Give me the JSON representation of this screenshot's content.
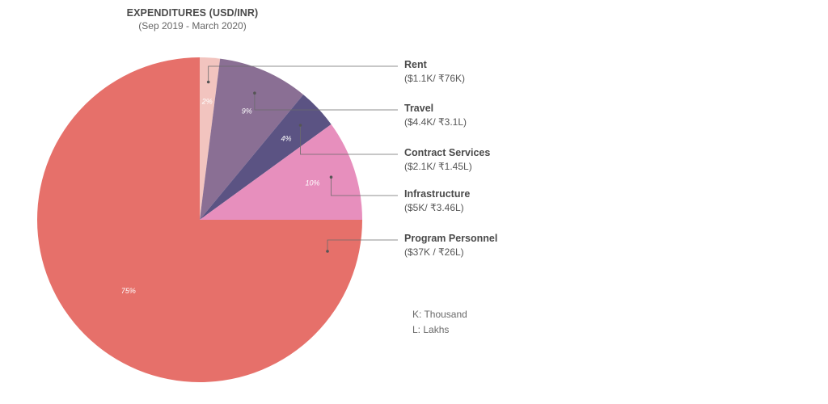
{
  "chart_data": {
    "type": "pie",
    "title": "EXPENDITURES (USD/INR)",
    "subtitle": "(Sep 2019 - March 2020)",
    "slices": [
      {
        "label": "Rent",
        "value": 2,
        "amount": "($1.1K/ ₹76K)",
        "pct_label": "2%",
        "color": "#f2c4bf"
      },
      {
        "label": "Travel",
        "value": 9,
        "amount": "($4.4K/ ₹3.1L)",
        "pct_label": "9%",
        "color": "#8a6f94"
      },
      {
        "label": "Contract Services",
        "value": 4,
        "amount": "($2.1K/ ₹1.45L)",
        "pct_label": "4%",
        "color": "#5b5383"
      },
      {
        "label": "Infrastructure",
        "value": 10,
        "amount": "($5K/ ₹3.46L)",
        "pct_label": "10%",
        "color": "#e78fbd"
      },
      {
        "label": "Program Personnel",
        "value": 75,
        "amount": "($37K / ₹26L)",
        "pct_label": "75%",
        "color": "#e6706a"
      }
    ]
  },
  "notes": [
    "K: Thousand",
    "L:  Lakhs"
  ]
}
